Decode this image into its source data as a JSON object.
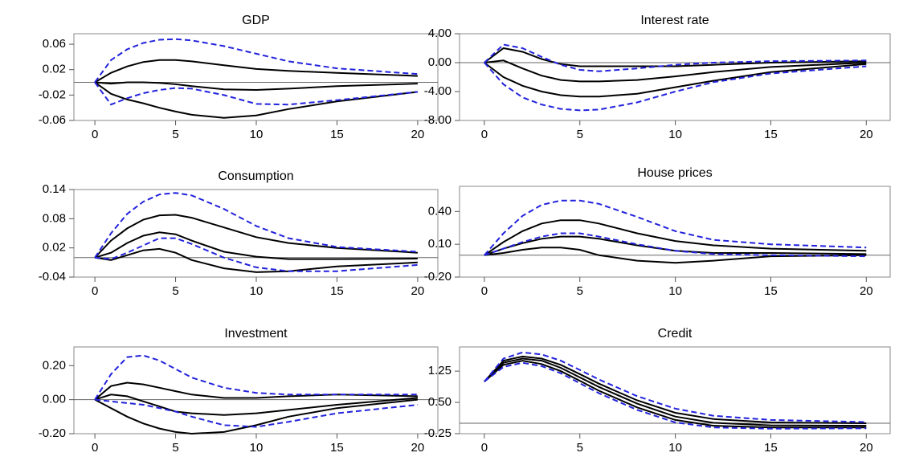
{
  "chart_data": [
    {
      "type": "line",
      "title": "GDP",
      "x": [
        0,
        1,
        2,
        3,
        4,
        5,
        6,
        8,
        10,
        12,
        15,
        20
      ],
      "xlim": [
        -1.3,
        21.25
      ],
      "xticks": [
        0,
        5,
        10,
        15,
        20
      ],
      "ylim": [
        -0.06,
        0.0765
      ],
      "yticks": [
        0.06,
        0.02,
        -0.02,
        -0.06
      ],
      "series": [
        {
          "color": "#000000",
          "style": "solid",
          "values": [
            0,
            0.015,
            0.025,
            0.032,
            0.035,
            0.035,
            0.033,
            0.027,
            0.021,
            0.018,
            0.015,
            0.01
          ]
        },
        {
          "color": "#000000",
          "style": "solid",
          "values": [
            0,
            -0.002,
            0,
            0,
            -0.001,
            -0.003,
            -0.006,
            -0.011,
            -0.012,
            -0.01,
            -0.006,
            -0.002
          ]
        },
        {
          "color": "#000000",
          "style": "solid",
          "values": [
            0,
            -0.018,
            -0.027,
            -0.033,
            -0.04,
            -0.046,
            -0.051,
            -0.056,
            -0.052,
            -0.042,
            -0.03,
            -0.015
          ]
        },
        {
          "color": "#2222dd",
          "style": "dashed",
          "values": [
            0,
            0.035,
            0.052,
            0.062,
            0.067,
            0.068,
            0.066,
            0.057,
            0.045,
            0.033,
            0.022,
            0.013
          ]
        },
        {
          "color": "#2222dd",
          "style": "dashed",
          "values": [
            0,
            -0.035,
            -0.025,
            -0.017,
            -0.012,
            -0.009,
            -0.01,
            -0.02,
            -0.034,
            -0.035,
            -0.028,
            -0.015
          ]
        }
      ]
    },
    {
      "type": "line",
      "title": "Interest rate",
      "x": [
        0,
        1,
        2,
        3,
        4,
        5,
        6,
        8,
        10,
        12,
        15,
        20
      ],
      "xlim": [
        -1.3,
        21.25
      ],
      "xticks": [
        0,
        5,
        10,
        15,
        20
      ],
      "ylim": [
        -8,
        4
      ],
      "yticks": [
        {
          "value": 4,
          "label": "4.00"
        },
        {
          "value": 0,
          "label": "0.00"
        },
        {
          "value": -4,
          "label": "-4.00"
        },
        {
          "value": -8,
          "label": "-8.00"
        }
      ],
      "series": [
        {
          "color": "#000000",
          "style": "solid",
          "values": [
            0,
            2,
            1.5,
            0.5,
            -0.2,
            -0.5,
            -0.5,
            -0.5,
            -0.5,
            -0.3,
            0,
            0.2
          ]
        },
        {
          "color": "#000000",
          "style": "solid",
          "values": [
            0,
            0.3,
            -0.8,
            -1.8,
            -2.4,
            -2.6,
            -2.6,
            -2.4,
            -1.9,
            -1.3,
            -0.6,
            0
          ]
        },
        {
          "color": "#000000",
          "style": "solid",
          "values": [
            0,
            -2,
            -3.2,
            -4,
            -4.5,
            -4.7,
            -4.7,
            -4.3,
            -3.4,
            -2.5,
            -1.3,
            -0.2
          ]
        },
        {
          "color": "#2222dd",
          "style": "dashed",
          "values": [
            0,
            2.5,
            2,
            0.8,
            -0.3,
            -1,
            -1.2,
            -0.8,
            -0.3,
            0,
            0.2,
            0.3
          ]
        },
        {
          "color": "#2222dd",
          "style": "dashed",
          "values": [
            0,
            -3,
            -4.8,
            -5.8,
            -6.4,
            -6.6,
            -6.5,
            -5.5,
            -4,
            -2.7,
            -1.5,
            -0.5
          ]
        }
      ]
    },
    {
      "type": "line",
      "title": "Consumption",
      "x": [
        0,
        1,
        2,
        3,
        4,
        5,
        6,
        8,
        10,
        12,
        15,
        20
      ],
      "xlim": [
        -1.3,
        21.25
      ],
      "xticks": [
        0,
        5,
        10,
        15,
        20
      ],
      "ylim": [
        -0.04,
        0.14
      ],
      "yticks": [
        0.14,
        0.08,
        0.02,
        -0.04
      ],
      "series": [
        {
          "color": "#000000",
          "style": "solid",
          "values": [
            0,
            0.035,
            0.06,
            0.078,
            0.087,
            0.088,
            0.082,
            0.062,
            0.042,
            0.03,
            0.02,
            0.01
          ]
        },
        {
          "color": "#000000",
          "style": "solid",
          "values": [
            0,
            0.01,
            0.03,
            0.045,
            0.052,
            0.048,
            0.035,
            0.012,
            0.002,
            -0.003,
            -0.003,
            -0.002
          ]
        },
        {
          "color": "#000000",
          "style": "solid",
          "values": [
            0,
            -0.005,
            0.005,
            0.015,
            0.018,
            0.01,
            -0.005,
            -0.022,
            -0.03,
            -0.028,
            -0.018,
            -0.01
          ]
        },
        {
          "color": "#2222dd",
          "style": "dashed",
          "values": [
            0,
            0.05,
            0.09,
            0.115,
            0.13,
            0.133,
            0.128,
            0.1,
            0.065,
            0.04,
            0.022,
            0.012
          ]
        },
        {
          "color": "#2222dd",
          "style": "dashed",
          "values": [
            0,
            -0.003,
            0.01,
            0.025,
            0.04,
            0.04,
            0.028,
            0,
            -0.02,
            -0.028,
            -0.028,
            -0.015
          ]
        }
      ]
    },
    {
      "type": "line",
      "title": "House prices",
      "x": [
        0,
        1,
        2,
        3,
        4,
        5,
        6,
        8,
        10,
        12,
        15,
        20
      ],
      "xlim": [
        -1.3,
        21.25
      ],
      "xticks": [
        0,
        5,
        10,
        15,
        20
      ],
      "ylim": [
        -0.2,
        0.63
      ],
      "yticks": [
        {
          "value": 0.4,
          "label": "0.40"
        },
        {
          "value": 0.1,
          "label": "0.10"
        },
        {
          "value": -0.2,
          "label": "-0.20"
        }
      ],
      "series": [
        {
          "color": "#000000",
          "style": "solid",
          "values": [
            0,
            0.12,
            0.22,
            0.29,
            0.32,
            0.32,
            0.29,
            0.2,
            0.13,
            0.09,
            0.06,
            0.04
          ]
        },
        {
          "color": "#000000",
          "style": "solid",
          "values": [
            0,
            0.06,
            0.11,
            0.15,
            0.17,
            0.17,
            0.15,
            0.09,
            0.04,
            0.02,
            0.02,
            0.01
          ]
        },
        {
          "color": "#000000",
          "style": "solid",
          "values": [
            0,
            0.02,
            0.05,
            0.07,
            0.07,
            0.05,
            0,
            -0.05,
            -0.07,
            -0.05,
            -0.01,
            0
          ]
        },
        {
          "color": "#2222dd",
          "style": "dashed",
          "values": [
            0,
            0.2,
            0.36,
            0.46,
            0.5,
            0.5,
            0.47,
            0.35,
            0.22,
            0.14,
            0.1,
            0.07
          ]
        },
        {
          "color": "#2222dd",
          "style": "dashed",
          "values": [
            0,
            0.06,
            0.12,
            0.17,
            0.2,
            0.2,
            0.17,
            0.1,
            0.04,
            0.01,
            0,
            -0.01
          ]
        }
      ]
    },
    {
      "type": "line",
      "title": "Investment",
      "x": [
        0,
        1,
        2,
        3,
        4,
        5,
        6,
        8,
        10,
        12,
        15,
        20
      ],
      "xlim": [
        -1.3,
        21.25
      ],
      "xticks": [
        0,
        5,
        10,
        15,
        20
      ],
      "ylim": [
        -0.2,
        0.31
      ],
      "yticks": [
        {
          "value": 0.2,
          "label": "0.20"
        },
        {
          "value": 0,
          "label": "0.00"
        },
        {
          "value": -0.2,
          "label": "-0.20"
        }
      ],
      "series": [
        {
          "color": "#000000",
          "style": "solid",
          "values": [
            0,
            0.08,
            0.1,
            0.09,
            0.07,
            0.05,
            0.03,
            0.01,
            0.01,
            0.02,
            0.03,
            0.02
          ]
        },
        {
          "color": "#000000",
          "style": "solid",
          "values": [
            0,
            0.03,
            0.02,
            -0.01,
            -0.04,
            -0.07,
            -0.08,
            -0.09,
            -0.08,
            -0.06,
            -0.03,
            0.01
          ]
        },
        {
          "color": "#000000",
          "style": "solid",
          "values": [
            0,
            -0.05,
            -0.1,
            -0.14,
            -0.17,
            -0.19,
            -0.2,
            -0.19,
            -0.15,
            -0.1,
            -0.05,
            0
          ]
        },
        {
          "color": "#2222dd",
          "style": "dashed",
          "values": [
            0,
            0.15,
            0.25,
            0.26,
            0.23,
            0.18,
            0.13,
            0.07,
            0.04,
            0.03,
            0.03,
            0.03
          ]
        },
        {
          "color": "#2222dd",
          "style": "dashed",
          "values": [
            0,
            -0.01,
            -0.02,
            -0.03,
            -0.05,
            -0.07,
            -0.1,
            -0.15,
            -0.16,
            -0.13,
            -0.08,
            -0.03
          ]
        }
      ]
    },
    {
      "type": "line",
      "title": "Credit",
      "x": [
        0,
        1,
        2,
        3,
        4,
        5,
        6,
        8,
        10,
        12,
        15,
        20
      ],
      "xlim": [
        -1.3,
        21.25
      ],
      "xticks": [
        0,
        5,
        10,
        15,
        20
      ],
      "ylim": [
        -0.25,
        1.83
      ],
      "yticks": [
        1.25,
        {
          "value": 0.5,
          "label": "0.50"
        },
        -0.25
      ],
      "series": [
        {
          "color": "#000000",
          "style": "solid",
          "values": [
            1,
            1.5,
            1.6,
            1.55,
            1.4,
            1.18,
            0.95,
            0.55,
            0.25,
            0.1,
            0.02,
            0
          ]
        },
        {
          "color": "#000000",
          "style": "solid",
          "values": [
            1,
            1.45,
            1.55,
            1.5,
            1.33,
            1.1,
            0.87,
            0.47,
            0.16,
            0.01,
            -0.05,
            -0.06
          ]
        },
        {
          "color": "#000000",
          "style": "solid",
          "values": [
            1,
            1.4,
            1.5,
            1.42,
            1.25,
            1.02,
            0.78,
            0.38,
            0.08,
            -0.06,
            -0.1,
            -0.1
          ]
        },
        {
          "color": "#2222dd",
          "style": "dashed",
          "values": [
            1,
            1.55,
            1.7,
            1.65,
            1.5,
            1.28,
            1.05,
            0.65,
            0.35,
            0.18,
            0.08,
            0.03
          ]
        },
        {
          "color": "#2222dd",
          "style": "dashed",
          "values": [
            1,
            1.35,
            1.45,
            1.37,
            1.2,
            0.96,
            0.72,
            0.32,
            0.02,
            -0.1,
            -0.13,
            -0.12
          ]
        }
      ]
    }
  ]
}
